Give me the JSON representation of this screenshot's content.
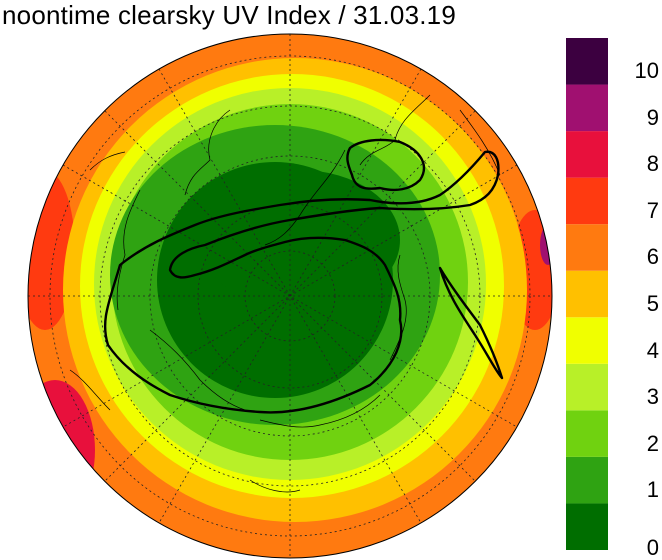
{
  "title": "noontime clearsky UV Index / 31.03.19",
  "colorbar": {
    "tick_labels": [
      "0",
      "1",
      "2",
      "3",
      "4",
      "5",
      "6",
      "7",
      "8",
      "9",
      "10"
    ],
    "levels": [
      {
        "value": 0,
        "color": "#006e00"
      },
      {
        "value": 1,
        "color": "#2fa312"
      },
      {
        "value": 2,
        "color": "#70d210"
      },
      {
        "value": 3,
        "color": "#b8f028"
      },
      {
        "value": 4,
        "color": "#f0ff00"
      },
      {
        "value": 5,
        "color": "#ffc000"
      },
      {
        "value": 6,
        "color": "#ff7a10"
      },
      {
        "value": 7,
        "color": "#ff3a10"
      },
      {
        "value": 8,
        "color": "#e8103c"
      },
      {
        "value": 9,
        "color": "#a01070"
      },
      {
        "value": 10,
        "color": "#3c0040"
      }
    ]
  },
  "map": {
    "projection": "north polar stereographic",
    "colors": {
      "uv0": "#006e00",
      "uv1": "#2fa312",
      "uv2": "#70d210",
      "uv3": "#b8f028",
      "uv4": "#f0ff00",
      "uv5": "#ffc000",
      "uv6": "#ff7a10",
      "uv7": "#ff3a10",
      "uv8": "#e8103c",
      "uv9": "#a01070"
    }
  }
}
